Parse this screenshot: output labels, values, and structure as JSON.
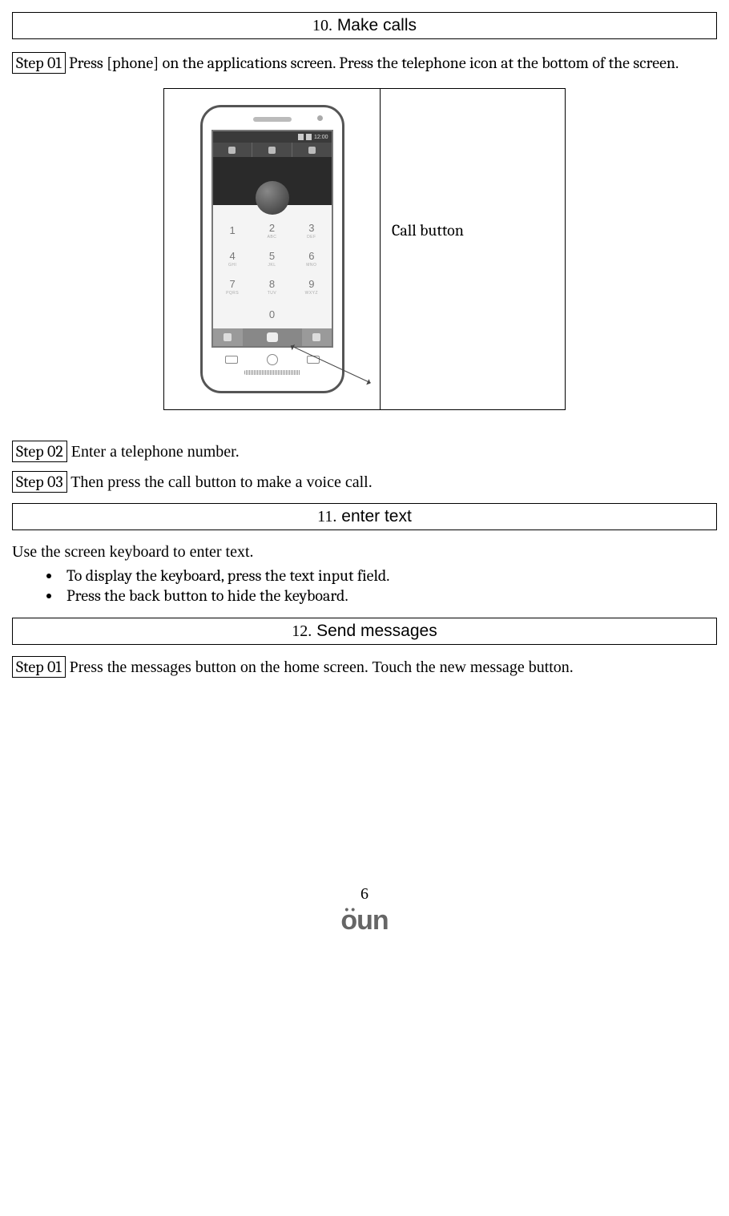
{
  "sections": {
    "s10": {
      "num": "10.",
      "title": "Make calls"
    },
    "s11": {
      "num": "11.",
      "title": "enter text"
    },
    "s12": {
      "num": "12.",
      "title": "Send messages"
    }
  },
  "steps": {
    "s10_step01_label": "Step 01",
    "s10_step01_text": " Press [phone] on the applications screen. Press the telephone icon at the bottom of the screen.",
    "s10_step02_label": "Step 02",
    "s10_step02_text": " Enter a telephone number.",
    "s10_step03_label": "Step 03",
    "s10_step03_text": " Then press the call button to make a voice call.",
    "s12_step01_label": "Step 01",
    "s12_step01_text": " Press the messages button on the home screen. Touch the new message button."
  },
  "figure": {
    "callout": "Call button",
    "status_time": "12:00",
    "keys": [
      "1",
      "2",
      "3",
      "4",
      "5",
      "6",
      "7",
      "8",
      "9",
      "",
      "0",
      ""
    ],
    "key_subs": [
      "",
      "ABC",
      "DEF",
      "GHI",
      "JKL",
      "MNO",
      "PQRS",
      "TUV",
      "WXYZ",
      "",
      "",
      ""
    ]
  },
  "section11": {
    "intro": "Use the screen keyboard to enter text.",
    "bullets": [
      "To display the keyboard, press the text input field.",
      "Press the back button to hide the keyboard."
    ]
  },
  "footer": {
    "page": "6",
    "logo_text": "öun"
  },
  "colors": {
    "text": "#000000",
    "border": "#000000",
    "phone_dark": "#3a3a3a",
    "phone_gray": "#888888",
    "logo": "#666666"
  }
}
